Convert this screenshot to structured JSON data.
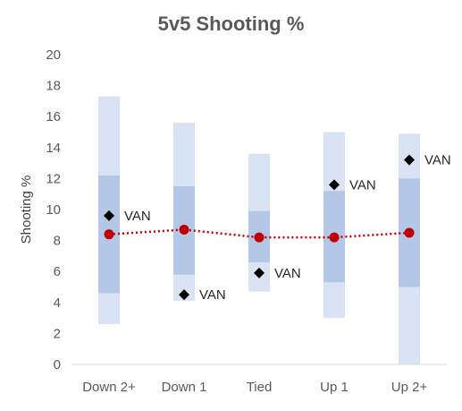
{
  "chart_data": {
    "type": "bar",
    "title": "5v5 Shooting %",
    "xlabel": "",
    "ylabel": "Shooting %",
    "ylim": [
      0,
      20
    ],
    "y_ticks": [
      0,
      2,
      4,
      6,
      8,
      10,
      12,
      14,
      16,
      18,
      20
    ],
    "categories": [
      "Down 2+",
      "Down 1",
      "Tied",
      "Up 1",
      "Up 2+"
    ],
    "grid": false,
    "series": [
      {
        "role": "outer-range",
        "color": "#dae3f3",
        "low": [
          2.6,
          4.1,
          4.7,
          3.0,
          0.0
        ],
        "high": [
          17.3,
          15.6,
          13.6,
          15.0,
          14.9
        ]
      },
      {
        "role": "inner-range",
        "color": "#b4c7e7",
        "low": [
          4.6,
          5.8,
          6.6,
          5.3,
          5.0
        ],
        "high": [
          12.2,
          11.5,
          9.9,
          11.2,
          12.0
        ]
      },
      {
        "role": "average",
        "color": "#c00000",
        "values": [
          8.4,
          8.7,
          8.2,
          8.2,
          8.5
        ]
      },
      {
        "name": "VAN",
        "role": "team",
        "color": "#000000",
        "values": [
          9.6,
          4.5,
          5.9,
          11.6,
          13.2
        ],
        "labels": [
          "VAN",
          "VAN",
          "VAN",
          "VAN",
          "VAN"
        ]
      }
    ]
  }
}
